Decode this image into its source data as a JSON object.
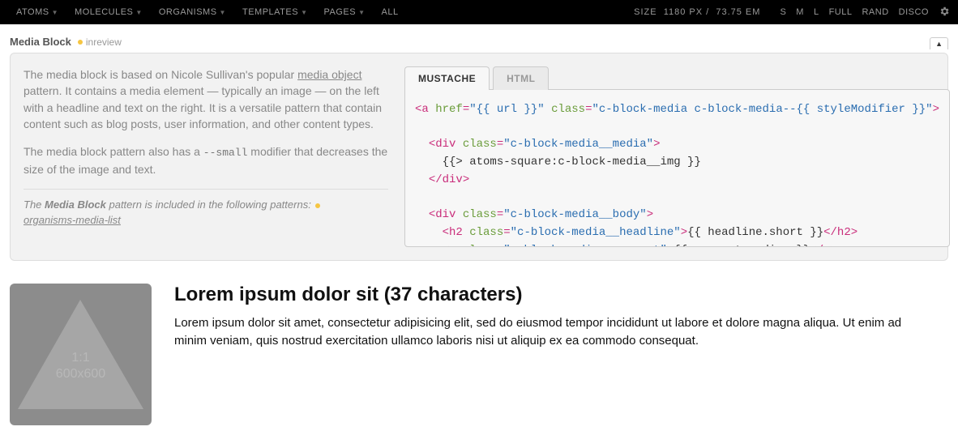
{
  "topbar": {
    "items": [
      "ATOMS",
      "MOLECULES",
      "ORGANISMS",
      "TEMPLATES",
      "PAGES",
      "ALL"
    ],
    "size_label": "SIZE",
    "size_px": "1180 PX",
    "size_em": "73.75 EM",
    "breakpoints": [
      "S",
      "M",
      "L",
      "FULL",
      "RAND",
      "DISCO"
    ]
  },
  "pattern": {
    "title": "Media Block",
    "status": "inreview",
    "status_color": "#f5c542"
  },
  "description": {
    "p1_prefix": "The media block is based on Nicole Sullivan's popular ",
    "p1_link": "media object",
    "p1_suffix": " pattern. It contains a media element — typically an image — on the left with a headline and text on the right. It is a versatile pattern that contain content such as blog posts, user information, and other content types.",
    "p2_prefix": "The media block pattern also has a ",
    "p2_code": "--small",
    "p2_suffix": " modifier that decreases the size of the image and text.",
    "included_prefix": "The ",
    "included_bold": "Media Block",
    "included_suffix": " pattern is included in the following patterns:",
    "included_link": "organisms-media-list"
  },
  "code": {
    "tabs": [
      "MUSTACHE",
      "HTML"
    ],
    "active_tab": 0,
    "lines": [
      {
        "indent": 0,
        "parts": [
          {
            "t": "tag",
            "v": "<a "
          },
          {
            "t": "attr",
            "v": "href"
          },
          {
            "t": "tag",
            "v": "="
          },
          {
            "t": "str",
            "v": "\"{{ url }}\""
          },
          {
            "t": "tag",
            "v": " "
          },
          {
            "t": "attr",
            "v": "class"
          },
          {
            "t": "tag",
            "v": "="
          },
          {
            "t": "str",
            "v": "\"c-block-media c-block-media--{{ styleModifier }}\""
          },
          {
            "t": "tag",
            "v": ">"
          }
        ]
      },
      {
        "indent": 0,
        "parts": []
      },
      {
        "indent": 1,
        "parts": [
          {
            "t": "tag",
            "v": "<div "
          },
          {
            "t": "attr",
            "v": "class"
          },
          {
            "t": "tag",
            "v": "="
          },
          {
            "t": "str",
            "v": "\"c-block-media__media\""
          },
          {
            "t": "tag",
            "v": ">"
          }
        ]
      },
      {
        "indent": 2,
        "parts": [
          {
            "t": "mus",
            "v": "{{> atoms-square:c-block-media__img }}"
          }
        ]
      },
      {
        "indent": 1,
        "parts": [
          {
            "t": "tag",
            "v": "</div>"
          }
        ]
      },
      {
        "indent": 0,
        "parts": []
      },
      {
        "indent": 1,
        "parts": [
          {
            "t": "tag",
            "v": "<div "
          },
          {
            "t": "attr",
            "v": "class"
          },
          {
            "t": "tag",
            "v": "="
          },
          {
            "t": "str",
            "v": "\"c-block-media__body\""
          },
          {
            "t": "tag",
            "v": ">"
          }
        ]
      },
      {
        "indent": 2,
        "parts": [
          {
            "t": "tag",
            "v": "<h2 "
          },
          {
            "t": "attr",
            "v": "class"
          },
          {
            "t": "tag",
            "v": "="
          },
          {
            "t": "str",
            "v": "\"c-block-media__headline\""
          },
          {
            "t": "tag",
            "v": ">"
          },
          {
            "t": "mus",
            "v": "{{ headline.short }}"
          },
          {
            "t": "tag",
            "v": "</h2>"
          }
        ]
      },
      {
        "indent": 2,
        "parts": [
          {
            "t": "tag",
            "v": "<p "
          },
          {
            "t": "attr",
            "v": "class"
          },
          {
            "t": "tag",
            "v": "="
          },
          {
            "t": "str",
            "v": "\"c-block-media__excerpt\""
          },
          {
            "t": "tag",
            "v": ">"
          },
          {
            "t": "mus",
            "v": "{{ excerpt.medium }}"
          },
          {
            "t": "tag",
            "v": "</p>"
          }
        ]
      }
    ]
  },
  "example": {
    "placeholder_ratio": "1:1",
    "placeholder_dims": "600x600",
    "placeholder_bg": "#8c8c8c",
    "placeholder_triangle": "#a6a6a6",
    "headline": "Lorem ipsum dolor sit (37 characters)",
    "excerpt": "Lorem ipsum dolor sit amet, consectetur adipisicing elit, sed do eiusmod tempor incididunt ut labore et dolore magna aliqua. Ut enim ad minim veniam, quis nostrud exercitation ullamco laboris nisi ut aliquip ex ea commodo consequat."
  }
}
